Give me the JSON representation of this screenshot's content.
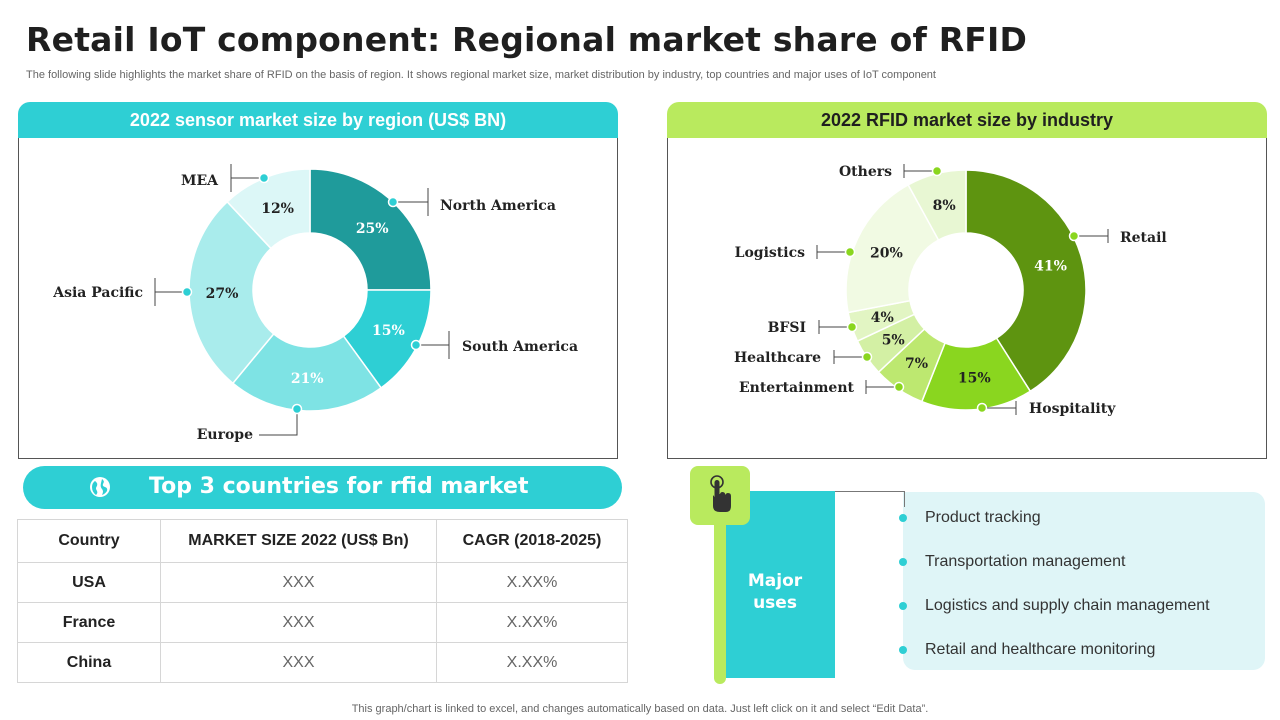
{
  "page": {
    "title": "Retail IoT component: Regional market share of RFID",
    "subtitle": "The following slide highlights the market share of RFID on the basis of region. It shows regional market size, market distribution by industry, top countries and major uses of IoT component",
    "footer": "This graph/chart is linked to excel,  and changes automatically based on data. Just left click on it and select “Edit Data”."
  },
  "chart_data": [
    {
      "type": "pie",
      "title": "2022 sensor market size by region (US$ BN)",
      "donut": true,
      "categories": [
        "North America",
        "South America",
        "Europe",
        "Asia Pacific",
        "MEA"
      ],
      "values": [
        25,
        15,
        21,
        27,
        12
      ],
      "labels": [
        "25%",
        "15%",
        "21%",
        "27%",
        "12%"
      ],
      "colors": [
        "#1f9b9b",
        "#2ecfd4",
        "#7ee3e4",
        "#a9ecec",
        "#dcf7f7"
      ],
      "label_colors": [
        "#ffffff",
        "#ffffff",
        "#ffffff",
        "#222222",
        "#222222"
      ]
    },
    {
      "type": "pie",
      "title": "2022 RFID market size by industry",
      "donut": true,
      "categories": [
        "Retail",
        "Hospitality",
        "Entertainment",
        "Healthcare",
        "BFSI",
        "Logistics",
        "Others"
      ],
      "values": [
        41,
        15,
        7,
        5,
        4,
        20,
        8
      ],
      "labels": [
        "41%",
        "15%",
        "7%",
        "5%",
        "4%",
        "20%",
        "8%"
      ],
      "colors": [
        "#5e9410",
        "#8ad61f",
        "#bde870",
        "#d3f0a4",
        "#e2f5c3",
        "#f1fae3",
        "#e8f7d3"
      ],
      "label_colors": [
        "#ffffff",
        "#222222",
        "#222222",
        "#222222",
        "#222222",
        "#222222",
        "#222222"
      ]
    }
  ],
  "countries": {
    "title": "Top 3 countries for rfid market",
    "headers": [
      "Country",
      "MARKET SIZE 2022 (US$ Bn)",
      "CAGR (2018-2025)"
    ],
    "rows": [
      {
        "country": "USA",
        "size": "XXX",
        "cagr": "X.XX%"
      },
      {
        "country": "France",
        "size": "XXX",
        "cagr": "X.XX%"
      },
      {
        "country": "China",
        "size": "XXX",
        "cagr": "X.XX%"
      }
    ]
  },
  "uses": {
    "heading_line1": "Major",
    "heading_line2": "uses",
    "items": [
      "Product tracking",
      "Transportation  management",
      "Logistics and supply  chain management",
      "Retail and healthcare  monitoring"
    ]
  },
  "icons": {
    "globe": "globe-icon",
    "touch": "hand-pointer-icon"
  }
}
